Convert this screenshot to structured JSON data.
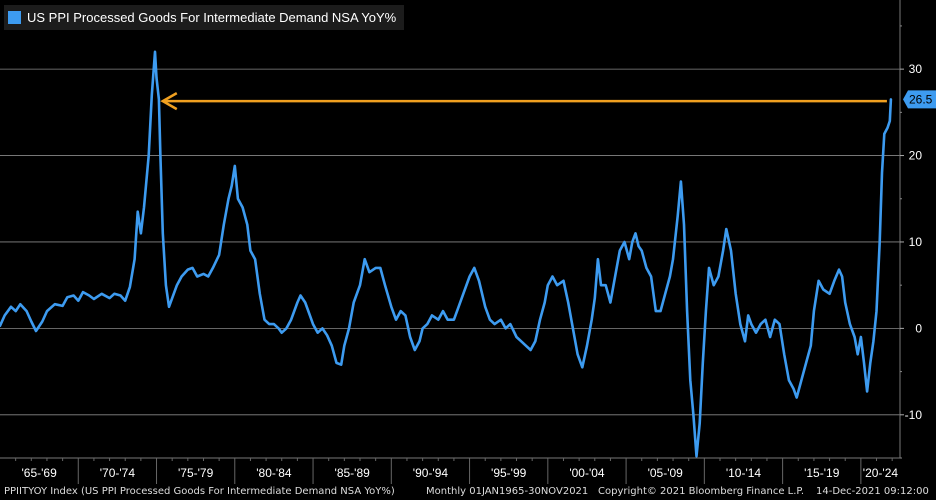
{
  "legend": {
    "label": "US PPI Processed Goods For Intermediate Demand NSA YoY%",
    "color": "#3d9bf0"
  },
  "footer": {
    "ticker": "PPIITYOY Index (US PPI Processed Goods For Intermediate Demand NSA YoY%)",
    "range": "Monthly 01JAN1965-30NOV2021",
    "copyright": "Copyright© 2021 Bloomberg Finance L.P.",
    "timestamp": "14-Dec-2021 09:12:00"
  },
  "last_value_label": "26.5",
  "chart_data": {
    "type": "line",
    "title": "US PPI Processed Goods For Intermediate Demand NSA YoY%",
    "xlabel": "",
    "ylabel": "",
    "x_range": [
      1965.0,
      2022.5
    ],
    "ylim": [
      -15,
      38
    ],
    "y_ticks": [
      30,
      20,
      10,
      0,
      -10
    ],
    "x_tick_labels": [
      "'65-'69",
      "'70-'74",
      "'75-'79",
      "'80-'84",
      "'85-'89",
      "'90-'94",
      "'95-'99",
      "'00-'04",
      "'05-'09",
      "'10-'14",
      "'15-'19",
      "'20-'24"
    ],
    "x_tick_bounds": [
      1970,
      1975,
      1980,
      1985,
      1990,
      1995,
      2000,
      2005,
      2010,
      2015,
      2020
    ],
    "grid": true,
    "legend_position": "top-left",
    "series": [
      {
        "name": "US PPI Processed Goods For Intermediate Demand NSA YoY%",
        "color": "#3d9bf0",
        "points": [
          [
            1965.0,
            0.3
          ],
          [
            1965.3,
            1.5
          ],
          [
            1965.7,
            2.5
          ],
          [
            1966.0,
            2.0
          ],
          [
            1966.3,
            2.8
          ],
          [
            1966.7,
            2.0
          ],
          [
            1967.0,
            0.8
          ],
          [
            1967.3,
            -0.3
          ],
          [
            1967.7,
            0.8
          ],
          [
            1968.0,
            2.0
          ],
          [
            1968.5,
            2.8
          ],
          [
            1969.0,
            2.6
          ],
          [
            1969.3,
            3.6
          ],
          [
            1969.7,
            3.8
          ],
          [
            1970.0,
            3.2
          ],
          [
            1970.3,
            4.2
          ],
          [
            1970.7,
            3.8
          ],
          [
            1971.0,
            3.4
          ],
          [
            1971.5,
            4.0
          ],
          [
            1972.0,
            3.5
          ],
          [
            1972.3,
            4.0
          ],
          [
            1972.7,
            3.8
          ],
          [
            1973.0,
            3.2
          ],
          [
            1973.3,
            4.8
          ],
          [
            1973.6,
            8.0
          ],
          [
            1973.8,
            13.5
          ],
          [
            1974.0,
            11.0
          ],
          [
            1974.2,
            14.0
          ],
          [
            1974.5,
            20.0
          ],
          [
            1974.7,
            27.0
          ],
          [
            1974.9,
            32.0
          ],
          [
            1975.0,
            29.0
          ],
          [
            1975.15,
            26.5
          ],
          [
            1975.25,
            20.0
          ],
          [
            1975.4,
            11.0
          ],
          [
            1975.6,
            5.0
          ],
          [
            1975.8,
            2.5
          ],
          [
            1976.0,
            3.5
          ],
          [
            1976.3,
            5.0
          ],
          [
            1976.6,
            6.0
          ],
          [
            1977.0,
            6.8
          ],
          [
            1977.3,
            7.0
          ],
          [
            1977.6,
            6.0
          ],
          [
            1978.0,
            6.3
          ],
          [
            1978.3,
            6.0
          ],
          [
            1978.6,
            7.0
          ],
          [
            1979.0,
            8.5
          ],
          [
            1979.3,
            12.0
          ],
          [
            1979.6,
            15.0
          ],
          [
            1979.8,
            16.5
          ],
          [
            1980.0,
            18.8
          ],
          [
            1980.2,
            15.0
          ],
          [
            1980.5,
            14.0
          ],
          [
            1980.8,
            12.0
          ],
          [
            1981.0,
            9.0
          ],
          [
            1981.3,
            8.0
          ],
          [
            1981.6,
            4.0
          ],
          [
            1981.9,
            1.0
          ],
          [
            1982.2,
            0.5
          ],
          [
            1982.5,
            0.5
          ],
          [
            1982.8,
            0.0
          ],
          [
            1983.0,
            -0.5
          ],
          [
            1983.3,
            0.0
          ],
          [
            1983.6,
            1.0
          ],
          [
            1984.0,
            3.0
          ],
          [
            1984.2,
            3.8
          ],
          [
            1984.5,
            3.0
          ],
          [
            1984.8,
            1.5
          ],
          [
            1985.0,
            0.5
          ],
          [
            1985.3,
            -0.5
          ],
          [
            1985.6,
            0.0
          ],
          [
            1985.9,
            -0.8
          ],
          [
            1986.2,
            -2.0
          ],
          [
            1986.5,
            -4.0
          ],
          [
            1986.8,
            -4.2
          ],
          [
            1987.0,
            -2.0
          ],
          [
            1987.3,
            0.0
          ],
          [
            1987.6,
            3.0
          ],
          [
            1988.0,
            5.0
          ],
          [
            1988.3,
            8.0
          ],
          [
            1988.6,
            6.5
          ],
          [
            1989.0,
            7.0
          ],
          [
            1989.3,
            7.0
          ],
          [
            1989.6,
            5.0
          ],
          [
            1990.0,
            2.5
          ],
          [
            1990.3,
            1.0
          ],
          [
            1990.6,
            2.0
          ],
          [
            1990.9,
            1.5
          ],
          [
            1991.2,
            -1.0
          ],
          [
            1991.5,
            -2.5
          ],
          [
            1991.8,
            -1.5
          ],
          [
            1992.0,
            0.0
          ],
          [
            1992.3,
            0.5
          ],
          [
            1992.6,
            1.5
          ],
          [
            1993.0,
            1.0
          ],
          [
            1993.3,
            2.0
          ],
          [
            1993.6,
            1.0
          ],
          [
            1994.0,
            1.0
          ],
          [
            1994.3,
            2.5
          ],
          [
            1994.6,
            4.0
          ],
          [
            1995.0,
            6.0
          ],
          [
            1995.3,
            7.0
          ],
          [
            1995.6,
            5.5
          ],
          [
            1996.0,
            2.5
          ],
          [
            1996.3,
            1.0
          ],
          [
            1996.6,
            0.5
          ],
          [
            1997.0,
            1.0
          ],
          [
            1997.3,
            0.0
          ],
          [
            1997.6,
            0.5
          ],
          [
            1998.0,
            -1.0
          ],
          [
            1998.3,
            -1.5
          ],
          [
            1998.6,
            -2.0
          ],
          [
            1998.9,
            -2.5
          ],
          [
            1999.2,
            -1.5
          ],
          [
            1999.5,
            1.0
          ],
          [
            1999.8,
            3.0
          ],
          [
            2000.0,
            5.0
          ],
          [
            2000.3,
            6.0
          ],
          [
            2000.6,
            5.0
          ],
          [
            2001.0,
            5.5
          ],
          [
            2001.3,
            3.0
          ],
          [
            2001.6,
            0.0
          ],
          [
            2001.9,
            -3.0
          ],
          [
            2002.2,
            -4.5
          ],
          [
            2002.5,
            -2.0
          ],
          [
            2002.8,
            1.0
          ],
          [
            2003.0,
            3.5
          ],
          [
            2003.2,
            8.0
          ],
          [
            2003.4,
            5.0
          ],
          [
            2003.7,
            5.0
          ],
          [
            2004.0,
            3.0
          ],
          [
            2004.3,
            6.0
          ],
          [
            2004.6,
            9.0
          ],
          [
            2004.9,
            10.0
          ],
          [
            2005.2,
            8.0
          ],
          [
            2005.4,
            10.0
          ],
          [
            2005.6,
            11.0
          ],
          [
            2005.8,
            9.5
          ],
          [
            2006.0,
            9.0
          ],
          [
            2006.3,
            7.0
          ],
          [
            2006.6,
            6.0
          ],
          [
            2006.9,
            2.0
          ],
          [
            2007.2,
            2.0
          ],
          [
            2007.5,
            4.0
          ],
          [
            2007.8,
            6.0
          ],
          [
            2008.0,
            8.0
          ],
          [
            2008.3,
            13.0
          ],
          [
            2008.5,
            17.0
          ],
          [
            2008.7,
            12.0
          ],
          [
            2008.9,
            2.0
          ],
          [
            2009.1,
            -6.0
          ],
          [
            2009.3,
            -10.0
          ],
          [
            2009.5,
            -14.8
          ],
          [
            2009.7,
            -11.0
          ],
          [
            2009.9,
            -4.0
          ],
          [
            2010.1,
            2.0
          ],
          [
            2010.3,
            7.0
          ],
          [
            2010.6,
            5.0
          ],
          [
            2010.9,
            6.0
          ],
          [
            2011.2,
            9.0
          ],
          [
            2011.4,
            11.5
          ],
          [
            2011.7,
            9.0
          ],
          [
            2012.0,
            4.0
          ],
          [
            2012.3,
            0.5
          ],
          [
            2012.6,
            -1.5
          ],
          [
            2012.8,
            1.5
          ],
          [
            2013.0,
            0.5
          ],
          [
            2013.3,
            -0.5
          ],
          [
            2013.6,
            0.5
          ],
          [
            2013.9,
            1.0
          ],
          [
            2014.2,
            -1.0
          ],
          [
            2014.5,
            1.0
          ],
          [
            2014.8,
            0.5
          ],
          [
            2015.1,
            -3.0
          ],
          [
            2015.4,
            -6.0
          ],
          [
            2015.7,
            -7.0
          ],
          [
            2015.9,
            -8.0
          ],
          [
            2016.2,
            -6.0
          ],
          [
            2016.5,
            -4.0
          ],
          [
            2016.8,
            -2.0
          ],
          [
            2017.0,
            2.0
          ],
          [
            2017.3,
            5.5
          ],
          [
            2017.6,
            4.5
          ],
          [
            2018.0,
            4.0
          ],
          [
            2018.3,
            5.5
          ],
          [
            2018.6,
            6.8
          ],
          [
            2018.8,
            6.0
          ],
          [
            2019.0,
            3.0
          ],
          [
            2019.3,
            0.5
          ],
          [
            2019.6,
            -1.0
          ],
          [
            2019.8,
            -3.0
          ],
          [
            2020.0,
            -1.0
          ],
          [
            2020.2,
            -4.0
          ],
          [
            2020.4,
            -7.3
          ],
          [
            2020.6,
            -4.0
          ],
          [
            2020.8,
            -1.5
          ],
          [
            2021.0,
            2.0
          ],
          [
            2021.2,
            10.0
          ],
          [
            2021.35,
            18.0
          ],
          [
            2021.5,
            22.5
          ],
          [
            2021.7,
            23.2
          ],
          [
            2021.85,
            24.0
          ],
          [
            2021.92,
            26.5
          ]
        ]
      }
    ],
    "annotations": [
      {
        "type": "arrow",
        "color": "#f0a020",
        "from": [
          2021.92,
          26.3
        ],
        "to": [
          1975.4,
          26.3
        ]
      }
    ]
  }
}
